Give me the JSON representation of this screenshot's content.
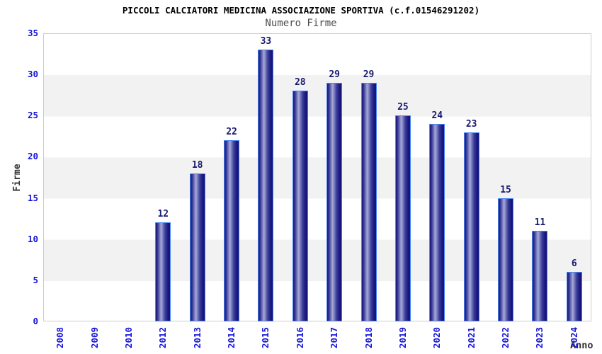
{
  "chart_data": {
    "type": "bar",
    "title": "PICCOLI CALCIATORI MEDICINA ASSOCIAZIONE SPORTIVA (c.f.01546291202)",
    "subtitle": "Numero Firme",
    "xlabel": "Anno",
    "ylabel": "Firme",
    "categories": [
      "2008",
      "2009",
      "2010",
      "2012",
      "2013",
      "2014",
      "2015",
      "2016",
      "2017",
      "2018",
      "2019",
      "2020",
      "2021",
      "2022",
      "2023",
      "2024"
    ],
    "values": [
      null,
      null,
      null,
      12,
      18,
      22,
      33,
      28,
      29,
      29,
      25,
      24,
      23,
      15,
      11,
      6
    ],
    "ylim": [
      0,
      35
    ],
    "y_ticks": [
      0,
      5,
      10,
      15,
      20,
      25,
      30,
      35
    ],
    "grid": "alternating horizontal bands",
    "legend": "none",
    "colors": {
      "title": "#000000",
      "subtitle": "#4d4d4d",
      "axis_tick_blue": "#1515d6",
      "value_label_navy": "#191970",
      "axis_title": "#333333",
      "bar_outline": "#4a86f0",
      "bar_dark": "#15157a",
      "bar_mid": "#3c3c9c",
      "bar_light": "#a6abd6",
      "band_gray": "#f2f2f2",
      "plot_border": "#cccccc",
      "background": "#ffffff"
    }
  }
}
